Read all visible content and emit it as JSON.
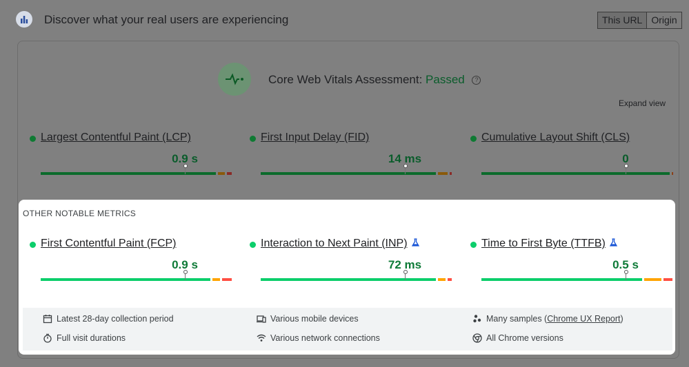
{
  "header": {
    "title": "Discover what your real users are experiencing",
    "logo_icon": "crux-logo-icon",
    "toggle": {
      "this_url": "This URL",
      "origin": "Origin",
      "selected": "This URL"
    }
  },
  "assessment": {
    "label": "Core Web Vitals Assessment:",
    "status": "Passed",
    "help": "?",
    "icon": "pulse-icon"
  },
  "expand_view": "Expand view",
  "core_metrics": [
    {
      "name": "Largest Contentful Paint (LCP)",
      "value": "0.9 s",
      "good": 0.925,
      "ni": 0.045,
      "poor": 0.02
    },
    {
      "name": "First Input Delay (FID)",
      "value": "14 ms",
      "good": 0.925,
      "ni": 0.06,
      "poor": 0.015
    },
    {
      "name": "Cumulative Layout Shift (CLS)",
      "value": "0",
      "good": 0.992,
      "ni": 0.004,
      "poor": 0.004
    }
  ],
  "other": {
    "title": "OTHER NOTABLE METRICS",
    "metrics": [
      {
        "name": "First Contentful Paint (FCP)",
        "value": "0.9 s",
        "experimental": false,
        "good": 0.895,
        "ni": 0.05,
        "poor": 0.055
      },
      {
        "name": "Interaction to Next Paint (INP)",
        "value": "72 ms",
        "experimental": true,
        "good": 0.925,
        "ni": 0.05,
        "poor": 0.025
      },
      {
        "name": "Time to First Byte (TTFB)",
        "value": "0.5 s",
        "experimental": true,
        "good": 0.85,
        "ni": 0.1,
        "poor": 0.05
      }
    ]
  },
  "footer": {
    "items": [
      {
        "icon": "calendar-icon",
        "text": "Latest 28-day collection period"
      },
      {
        "icon": "devices-icon",
        "text": "Various mobile devices"
      },
      {
        "icon": "samples-icon",
        "text_before": "Many samples (",
        "link": "Chrome UX Report",
        "text_after": ")"
      },
      {
        "icon": "timer-icon",
        "text": "Full visit durations"
      },
      {
        "icon": "wifi-icon",
        "text": "Various network connections"
      },
      {
        "icon": "chrome-icon",
        "text": "All Chrome versions"
      }
    ]
  },
  "colors": {
    "good": "#0cce6b",
    "needs_improvement": "#ffa400",
    "poor": "#ff4e42",
    "overlay": "#808080",
    "panel": "#ffffff"
  }
}
